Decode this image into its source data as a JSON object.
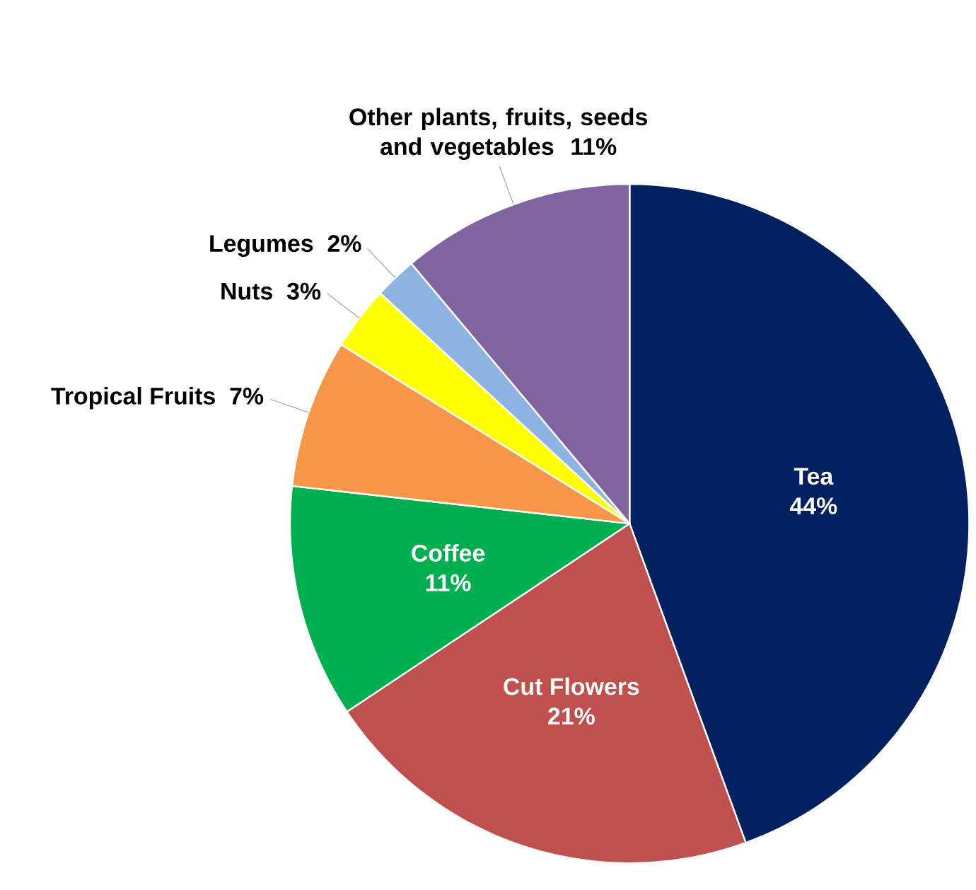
{
  "chart_data": {
    "type": "pie",
    "categories": [
      "Tea",
      "Cut Flowers",
      "Coffee",
      "Tropical Fruits",
      "Nuts",
      "Legumes",
      "Other plants, fruits, seeds and vegetables"
    ],
    "values": [
      44,
      21,
      11,
      7,
      3,
      2,
      11
    ],
    "colors": [
      "#002060",
      "#c0504d",
      "#00b050",
      "#f79646",
      "#ffff00",
      "#8db3e2",
      "#8064a2"
    ],
    "value_labels": [
      "44%",
      "21%",
      "11%",
      "7%",
      "3%",
      "2%",
      "11%"
    ]
  }
}
